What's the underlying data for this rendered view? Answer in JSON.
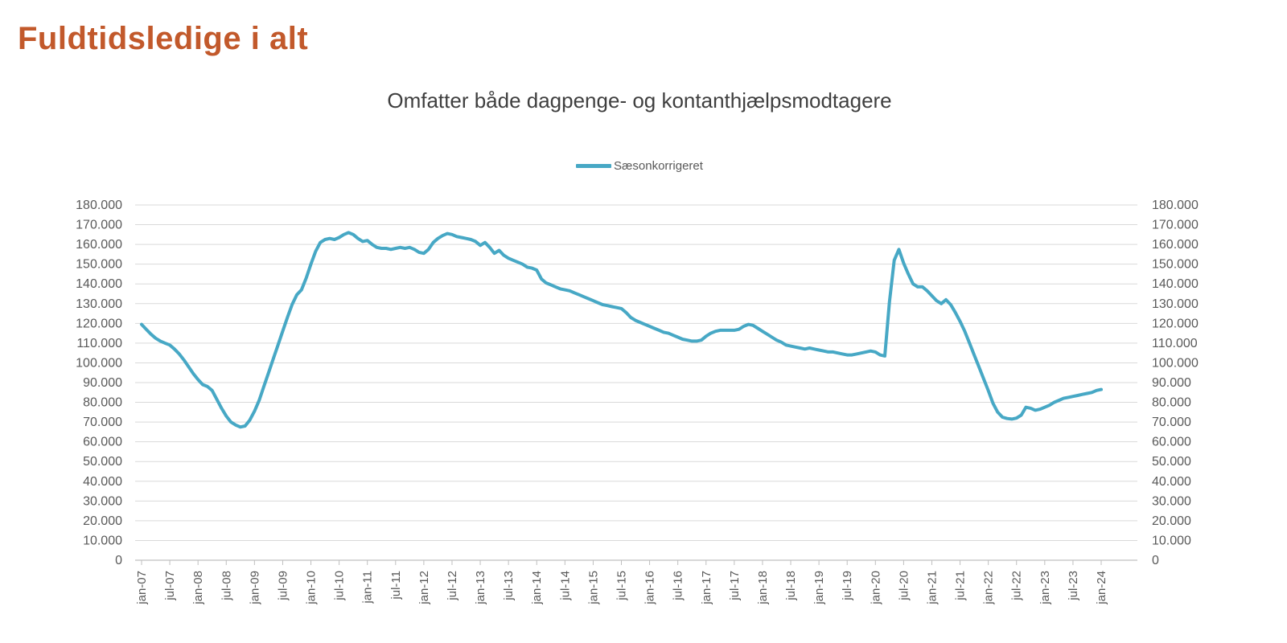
{
  "page": {
    "title": "Fuldtidsledige i alt",
    "title_color": "#c2592b"
  },
  "chart": {
    "subtitle": "Omfatter både dagpenge- og kontanthjælpsmodtagere",
    "legend_label": "Sæsonkorrigeret"
  },
  "chart_data": {
    "type": "line",
    "title": "Omfatter både dagpenge- og kontanthjælpsmodtagere",
    "xlabel": "",
    "ylabel": "",
    "ylim": [
      0,
      180000
    ],
    "y_step": 10000,
    "grid": "horizontal",
    "legend_position": "top-center",
    "x_frequency": "monthly",
    "x_start": "jan-07",
    "x_end": "jan-24",
    "x_tick_labels": [
      "jan-07",
      "jul-07",
      "jan-08",
      "jul-08",
      "jan-09",
      "jul-09",
      "jan-10",
      "jul-10",
      "jan-11",
      "jul-11",
      "jan-12",
      "jul-12",
      "jan-13",
      "jul-13",
      "jan-14",
      "jul-14",
      "jan-15",
      "jul-15",
      "jan-16",
      "jul-16",
      "jan-17",
      "jul-17",
      "jan-18",
      "jul-18",
      "jan-19",
      "jul-19",
      "jan-20",
      "jul-20",
      "jan-21",
      "jul-21",
      "jan-22",
      "jul-22",
      "jan-23",
      "jul-23",
      "jan-24"
    ],
    "y_tick_labels": [
      "0",
      "10.000",
      "20.000",
      "30.000",
      "40.000",
      "50.000",
      "60.000",
      "70.000",
      "80.000",
      "90.000",
      "100.000",
      "110.000",
      "120.000",
      "130.000",
      "140.000",
      "150.000",
      "160.000",
      "170.000",
      "180.000"
    ],
    "gridline_color": "#d9d9d9",
    "axis_line_color": "#bfbfbf",
    "axis_label_color": "#595959",
    "series": [
      {
        "name": "Sæsonkorrigeret",
        "color": "#47a8c5",
        "values": [
          119500,
          117000,
          114500,
          112500,
          111000,
          110000,
          109000,
          107000,
          104500,
          101500,
          98000,
          94500,
          91500,
          89000,
          88000,
          86000,
          81500,
          77000,
          73000,
          70000,
          68500,
          67500,
          68000,
          71000,
          75500,
          81000,
          88000,
          95000,
          102000,
          109000,
          116000,
          123000,
          129500,
          134500,
          137000,
          143000,
          150000,
          156500,
          161000,
          162500,
          163000,
          162500,
          163500,
          165000,
          166000,
          165000,
          163000,
          161500,
          162000,
          160000,
          158500,
          158000,
          158000,
          157500,
          158000,
          158500,
          158000,
          158500,
          157500,
          156000,
          155500,
          157500,
          161000,
          163000,
          164500,
          165500,
          165000,
          164000,
          163500,
          163000,
          162500,
          161500,
          159500,
          161000,
          158500,
          155500,
          157000,
          154500,
          153000,
          152000,
          151000,
          150000,
          148500,
          148000,
          147000,
          142500,
          140500,
          139500,
          138500,
          137500,
          137000,
          136500,
          135500,
          134500,
          133500,
          132500,
          131500,
          130500,
          129500,
          129000,
          128500,
          128000,
          127500,
          125500,
          123000,
          121500,
          120500,
          119500,
          118500,
          117500,
          116500,
          115500,
          115000,
          114000,
          113000,
          112000,
          111500,
          111000,
          111000,
          111500,
          113500,
          115000,
          116000,
          116500,
          116500,
          116500,
          116500,
          117000,
          118500,
          119500,
          119000,
          117500,
          116000,
          114500,
          113000,
          111500,
          110500,
          109000,
          108500,
          108000,
          107500,
          107000,
          107500,
          107000,
          106500,
          106000,
          105500,
          105500,
          105000,
          104500,
          104000,
          104000,
          104500,
          105000,
          105500,
          106000,
          105500,
          104000,
          103500,
          131000,
          152000,
          157500,
          150500,
          145000,
          140000,
          138500,
          138500,
          136500,
          134000,
          131500,
          130000,
          132000,
          129500,
          125500,
          121000,
          116000,
          110000,
          104000,
          98000,
          92000,
          86000,
          79500,
          75000,
          72500,
          71800,
          71500,
          72000,
          73500,
          77500,
          77000,
          76000,
          76500,
          77500,
          78500,
          80000,
          81000,
          82000,
          82500,
          83000,
          83500,
          84000,
          84500,
          85000,
          86000,
          86500
        ]
      }
    ]
  }
}
